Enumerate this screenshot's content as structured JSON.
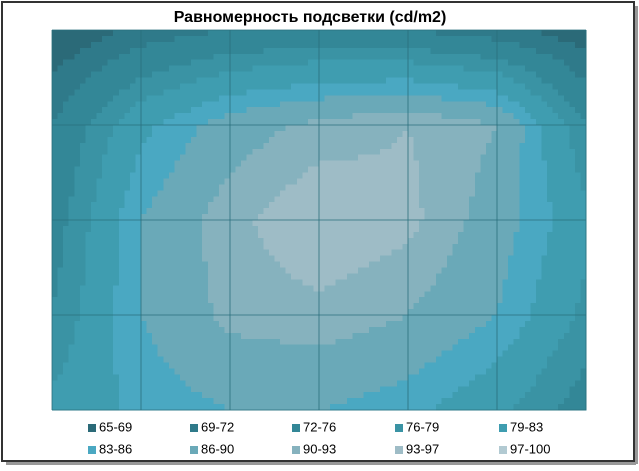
{
  "chart_data": {
    "type": "contour",
    "title": "Равномерность подсветки (cd/m2)",
    "z": [
      [
        66,
        70,
        72,
        73,
        72,
        70,
        67
      ],
      [
        72,
        82,
        88,
        91,
        93,
        90,
        76
      ],
      [
        74,
        86,
        92,
        96,
        94,
        88,
        80
      ],
      [
        76,
        86,
        91,
        92,
        90,
        86,
        78
      ],
      [
        80,
        84,
        86,
        86,
        84,
        80,
        74
      ]
    ],
    "levels": [
      65,
      69,
      72,
      76,
      79,
      83,
      86,
      90,
      93,
      97,
      100
    ],
    "bands": [
      {
        "label": "65-69",
        "color": "#2b6a78"
      },
      {
        "label": "69-72",
        "color": "#2f7a8a"
      },
      {
        "label": "72-76",
        "color": "#338797"
      },
      {
        "label": "76-79",
        "color": "#3a93a4"
      },
      {
        "label": "79-83",
        "color": "#3f9db0"
      },
      {
        "label": "83-86",
        "color": "#4aa8c2"
      },
      {
        "label": "86-90",
        "color": "#6aa9b8"
      },
      {
        "label": "90-93",
        "color": "#86b2be"
      },
      {
        "label": "93-97",
        "color": "#9ebcc6"
      },
      {
        "label": "97-100",
        "color": "#b2cad2"
      }
    ],
    "grid": true,
    "legend": "bottom"
  }
}
